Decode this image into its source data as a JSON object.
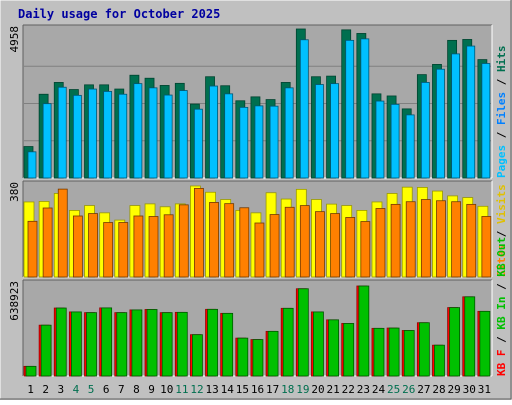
{
  "chart_data": {
    "type": "bar",
    "title": "Daily usage for October 2025",
    "categories": [
      "1",
      "2",
      "3",
      "4",
      "5",
      "6",
      "7",
      "8",
      "9",
      "10",
      "11",
      "12",
      "13",
      "14",
      "15",
      "16",
      "17",
      "18",
      "19",
      "20",
      "21",
      "22",
      "23",
      "24",
      "25",
      "26",
      "27",
      "28",
      "29",
      "30",
      "31"
    ],
    "weekend_days": [
      "4",
      "5",
      "11",
      "12",
      "18",
      "19",
      "25",
      "26"
    ],
    "panels": [
      {
        "id": "top",
        "ymax_label": "4958",
        "ylim": [
          0,
          4958
        ],
        "series": [
          {
            "name": "Hits",
            "color": "#006f4f",
            "values": [
              1047,
              2787,
              3180,
              2944,
              3100,
              3100,
              2960,
              3420,
              3320,
              3080,
              3150,
              2460,
              3370,
              3070,
              2570,
              2700,
              2610,
              3180,
              4958,
              3370,
              3390,
              4930,
              4810,
              2800,
              2730,
              2300,
              3440,
              3780,
              4580,
              4610,
              3940
            ]
          },
          {
            "name": "Files",
            "color": "#0080ff",
            "values": [
              871,
              2473,
              3020,
              2750,
              2960,
              2880,
              2787,
              3140,
              3000,
              2760,
              2910,
              2290,
              3060,
              2800,
              2350,
              2400,
              2390,
              3000,
              4600,
              3110,
              3140,
              4580,
              4630,
              2560,
              2450,
              2100,
              3180,
              3620,
              4130,
              4390,
              3810
            ]
          },
          {
            "name": "Pages",
            "color": "#00c0ff",
            "values": [
              871,
              2473,
              3020,
              2750,
              2960,
              2880,
              2787,
              3140,
              3000,
              2760,
              2910,
              2290,
              3060,
              2800,
              2350,
              2400,
              2390,
              3000,
              4600,
              3110,
              3140,
              4580,
              4630,
              2560,
              2450,
              2100,
              3180,
              3620,
              4130,
              4390,
              3810
            ]
          }
        ]
      },
      {
        "id": "middle",
        "ymax_label": "380",
        "ylim": [
          0,
          380
        ],
        "series": [
          {
            "name": "Visits",
            "color": "#ffff00",
            "values": [
              310,
              312,
              345,
              275,
              295,
              265,
              235,
              295,
              302,
              290,
              302,
              376,
              350,
              320,
              275,
              265,
              348,
              322,
              362,
              320,
              301,
              295,
              275,
              310,
              345,
              371,
              370,
              355,
              335,
              328,
              292
            ]
          },
          {
            "name": "Sites",
            "color": "#ff8000",
            "values": [
              230,
              285,
              363,
              252,
              262,
              225,
              225,
              252,
              250,
              257,
              298,
              366,
              308,
              303,
              286,
              223,
              258,
              288,
              295,
              270,
              262,
              246,
              229,
              283,
              300,
              311,
              320,
              315,
              311,
              300,
              250
            ]
          }
        ]
      },
      {
        "id": "bottom",
        "ymax_label": "638923",
        "ylim": [
          0,
          638923
        ],
        "series": [
          {
            "name": "KB F",
            "color": "#ff0000",
            "values": [
              67000,
              353000,
              472000,
              445000,
              440000,
              473000,
              440000,
              459000,
              462000,
              440000,
              442000,
              287000,
              463000,
              435000,
              263000,
              253000,
              310000,
              470000,
              606000,
              445000,
              390000,
              365000,
              625000,
              331000,
              333000,
              316000,
              370000,
              214000,
              475000,
              550000,
              449000
            ]
          },
          {
            "name": "KB In",
            "color": "#00c000",
            "values": [
              67000,
              353000,
              472000,
              445000,
              440000,
              473000,
              440000,
              459000,
              462000,
              440000,
              442000,
              287000,
              463000,
              435000,
              263000,
              253000,
              310000,
              470000,
              606000,
              445000,
              390000,
              365000,
              625000,
              331000,
              333000,
              316000,
              370000,
              214000,
              475000,
              550000,
              449000
            ]
          },
          {
            "name": "KB Out",
            "color": "#00c000",
            "values": [
              0,
              0,
              0,
              0,
              0,
              0,
              0,
              0,
              0,
              0,
              0,
              0,
              0,
              0,
              0,
              0,
              0,
              0,
              0,
              0,
              0,
              0,
              0,
              0,
              0,
              0,
              0,
              0,
              0,
              0,
              0
            ]
          }
        ]
      }
    ],
    "legend_right": {
      "top": [
        {
          "text": "Pages",
          "color": "#00c0ff"
        },
        {
          "text": "Files",
          "color": "#0080ff"
        },
        {
          "text": "Hits",
          "color": "#006f4f"
        }
      ],
      "middle": [
        {
          "text": "Sites",
          "color": "#ff8000"
        },
        {
          "text": "Visits",
          "color": "#e0c000"
        }
      ],
      "bottom": [
        {
          "text": "KB F",
          "color": "#ff0000"
        },
        {
          "text": "KB In",
          "color": "#00c000"
        },
        {
          "text": "KB Out",
          "color": "#00c000"
        }
      ]
    },
    "separator": " / "
  },
  "colors": {
    "background": "#c0c0c0",
    "panel": "#a8a8a8",
    "title": "#0000a0",
    "weekday_tick": "#000000",
    "weekend_tick": "#006f4f"
  }
}
